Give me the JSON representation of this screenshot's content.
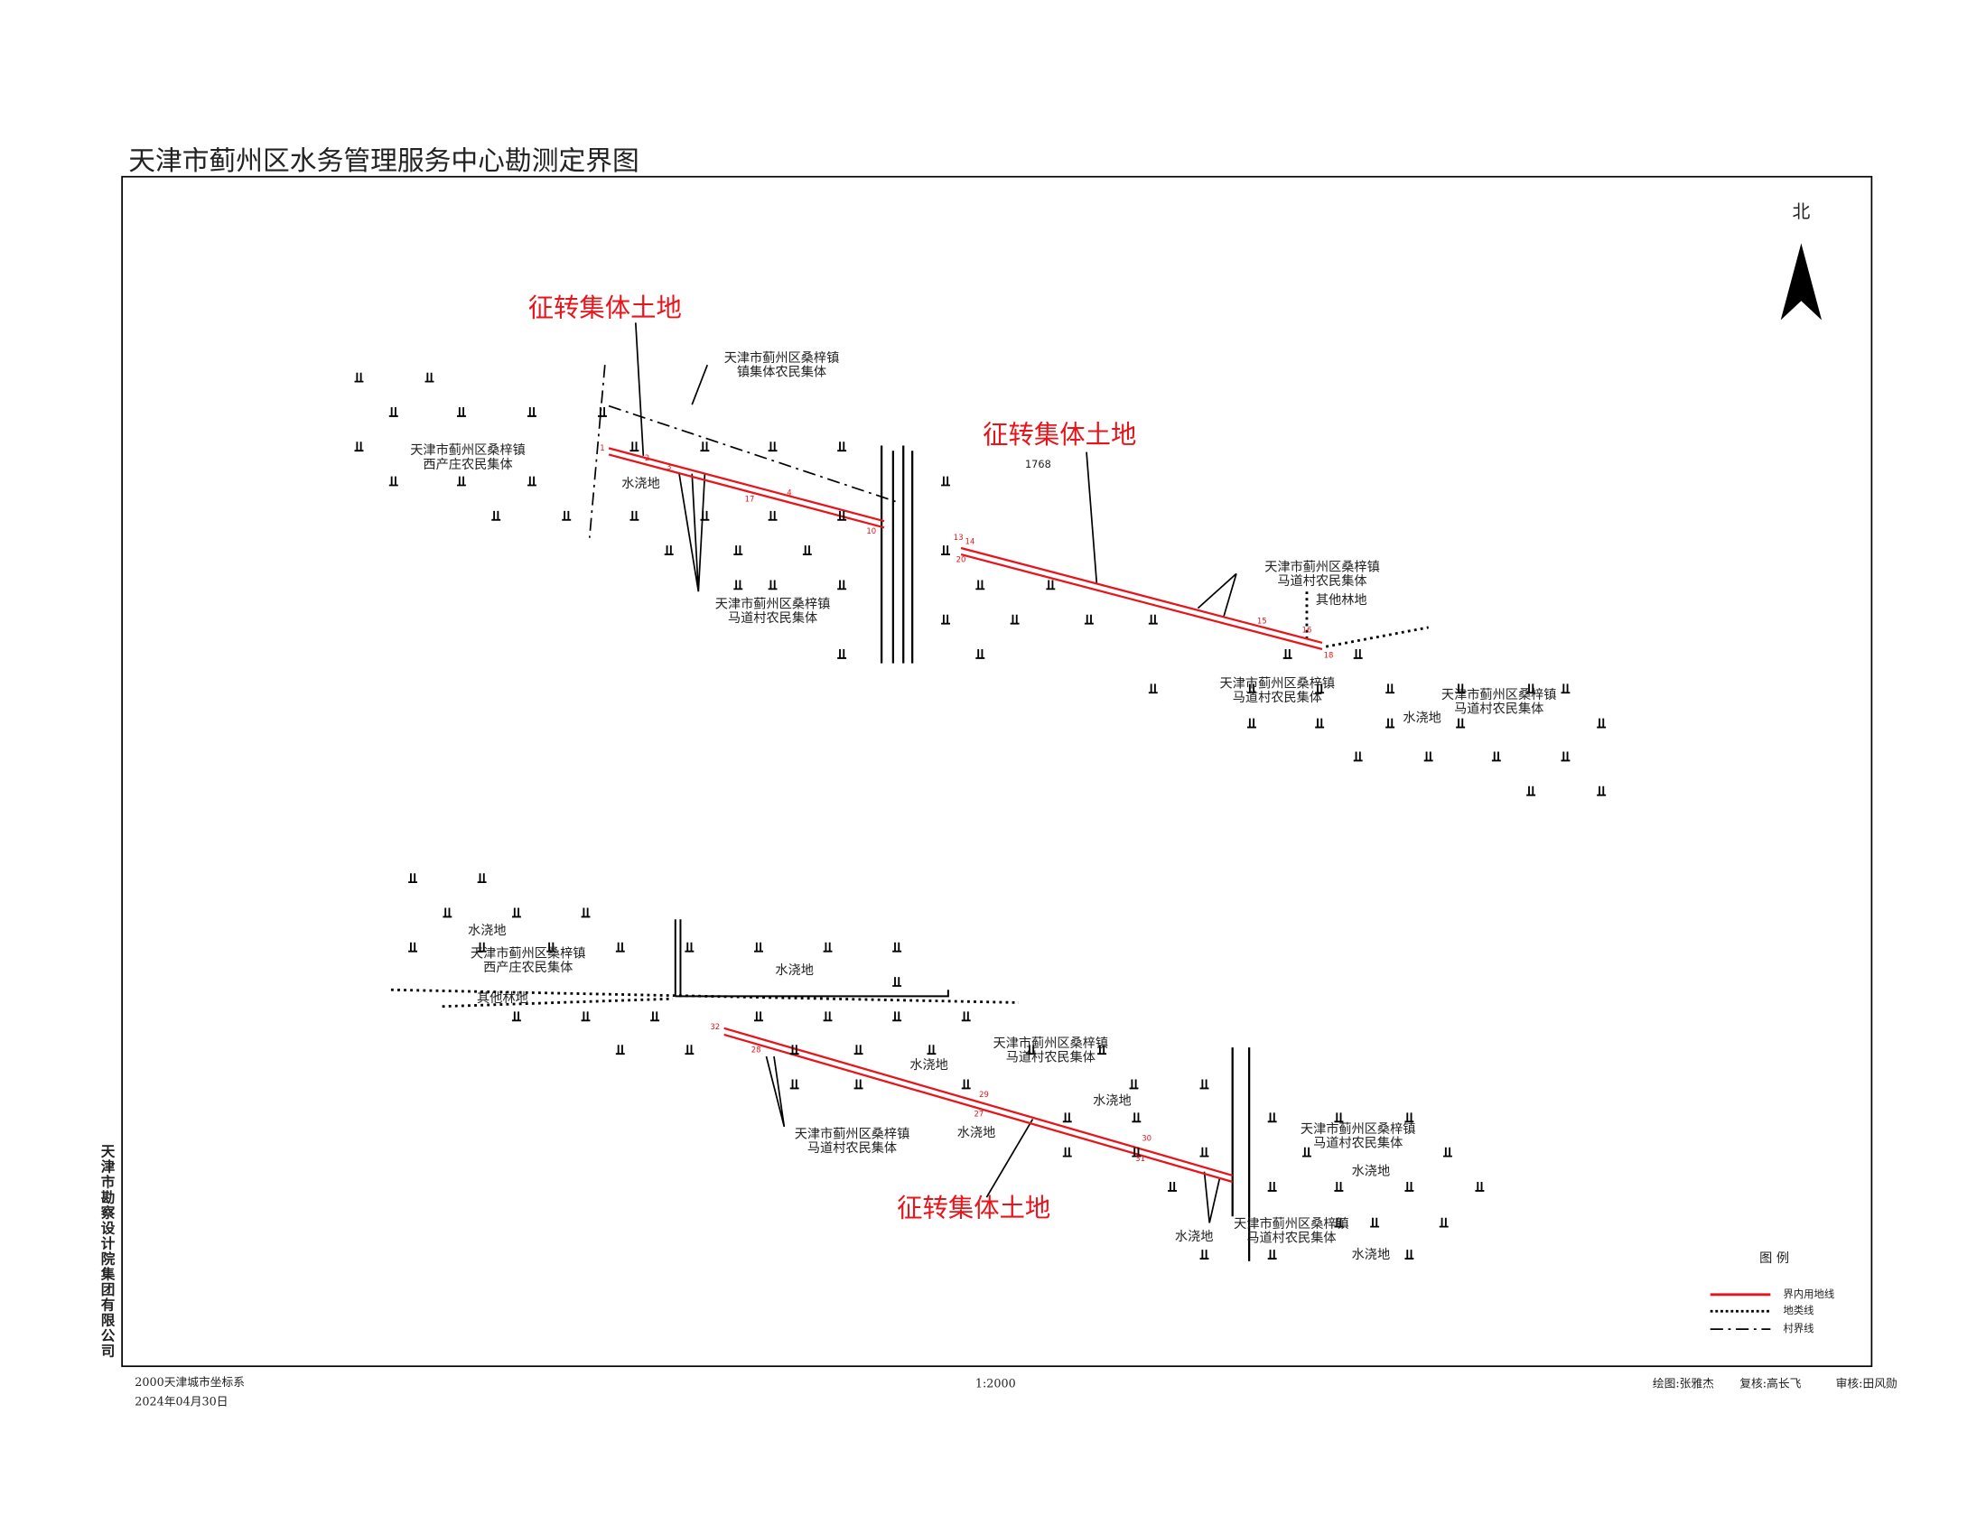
{
  "title": "天津市蓟州区水务管理服务中心勘测定界图",
  "north": "北",
  "annotations": [
    "征转集体土地",
    "征转集体土地",
    "征转集体土地"
  ],
  "parcel_code": "1768",
  "labels": [
    [
      "天津市蓟州区桑梓镇",
      "镇集体农民集体"
    ],
    [
      "天津市蓟州区桑梓镇",
      "西产庄农民集体"
    ],
    [
      "水浇地"
    ],
    [
      "天津市蓟州区桑梓镇",
      "马道村农民集体"
    ],
    [
      "天津市蓟州区桑梓镇",
      "马道村农民集体"
    ],
    [
      "其他林地"
    ],
    [
      "天津市蓟州区桑梓镇",
      "马道村农民集体"
    ],
    [
      "天津市蓟州区桑梓镇",
      "马道村农民集体"
    ],
    [
      "水浇地"
    ],
    [
      "水浇地"
    ],
    [
      "天津市蓟州区桑梓镇",
      "西产庄农民集体"
    ],
    [
      "水浇地"
    ],
    [
      "其他林地"
    ],
    [
      "天津市蓟州区桑梓镇",
      "马道村农民集体"
    ],
    [
      "水浇地"
    ],
    [
      "水浇地"
    ],
    [
      "水浇地"
    ],
    [
      "天津市蓟州区桑梓镇",
      "马道村农民集体"
    ],
    [
      "天津市蓟州区桑梓镇",
      "马道村农民集体"
    ],
    [
      "水浇地"
    ],
    [
      "天津市蓟州区桑梓镇",
      "马道村农民集体"
    ],
    [
      "水浇地"
    ],
    [
      "水浇地"
    ]
  ],
  "point_numbers": [
    "1",
    "2",
    "3",
    "17",
    "4",
    "10",
    "13",
    "14",
    "20",
    "15",
    "16",
    "18",
    "32",
    "28",
    "29",
    "27",
    "30",
    "31"
  ],
  "legend": {
    "title": "图 例",
    "items": [
      "界内用地线",
      "地类线",
      "村界线"
    ]
  },
  "company": "天津市勘察设计院集团有限公司",
  "footer": {
    "coordinate_system": "2000天津城市坐标系",
    "date": "2024年04月30日",
    "scale": "1:2000",
    "drawn_by": "绘图:张雅杰",
    "checked_by": "复核:高长飞",
    "approved_by": "审核:田风勋"
  }
}
